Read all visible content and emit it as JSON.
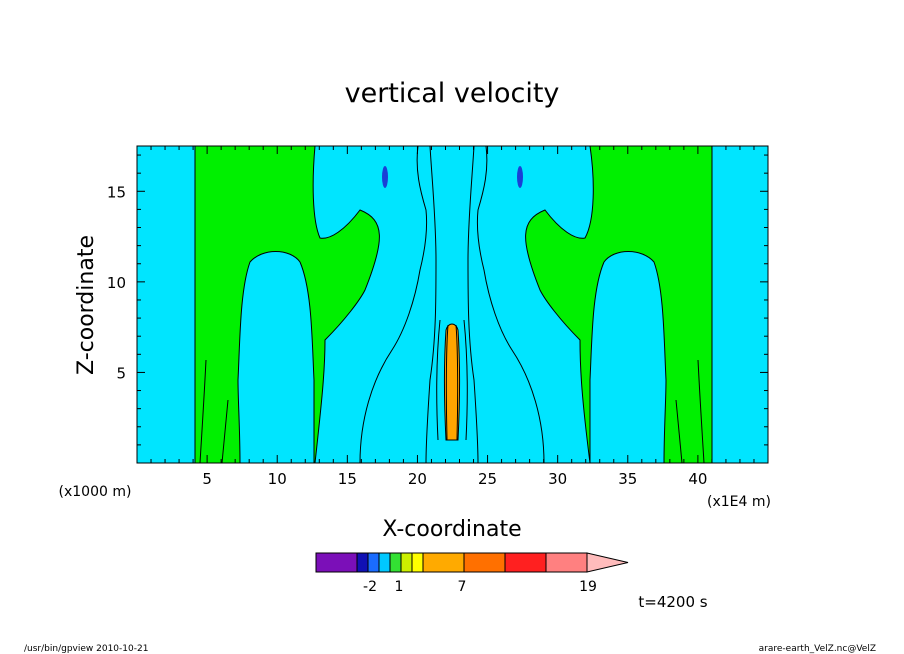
{
  "chart_data": {
    "type": "heatmap",
    "title": "vertical velocity",
    "xlabel": "X-coordinate",
    "ylabel": "Z-coordinate",
    "x_unit_note": "(x1E4 m)",
    "y_unit_note": "(x1000 m)",
    "xlim": [
      0,
      45
    ],
    "ylim": [
      0,
      17.5
    ],
    "x_ticks": [
      5,
      10,
      15,
      20,
      25,
      30,
      35,
      40
    ],
    "y_ticks": [
      5,
      10,
      15
    ],
    "colorbar": {
      "colors": [
        "#7b0fb8",
        "#1010b4",
        "#1a6cff",
        "#00c8ff",
        "#33e033",
        "#ccf000",
        "#ffff00",
        "#ffaa00",
        "#ff7000",
        "#ff2020",
        "#ff8080",
        "#ffbcbc"
      ],
      "labels": [
        "-2",
        "1",
        "7",
        "19"
      ]
    },
    "time_label": "t=4200 s"
  },
  "footer": {
    "left": "/usr/bin/gpview   2010-10-21",
    "right": "arare-earth_VelZ.nc@VelZ"
  },
  "colors": {
    "cyan": "#00e5ff",
    "green": "#00f000",
    "orange": "#ffa500",
    "blue": "#1a3fd6"
  }
}
